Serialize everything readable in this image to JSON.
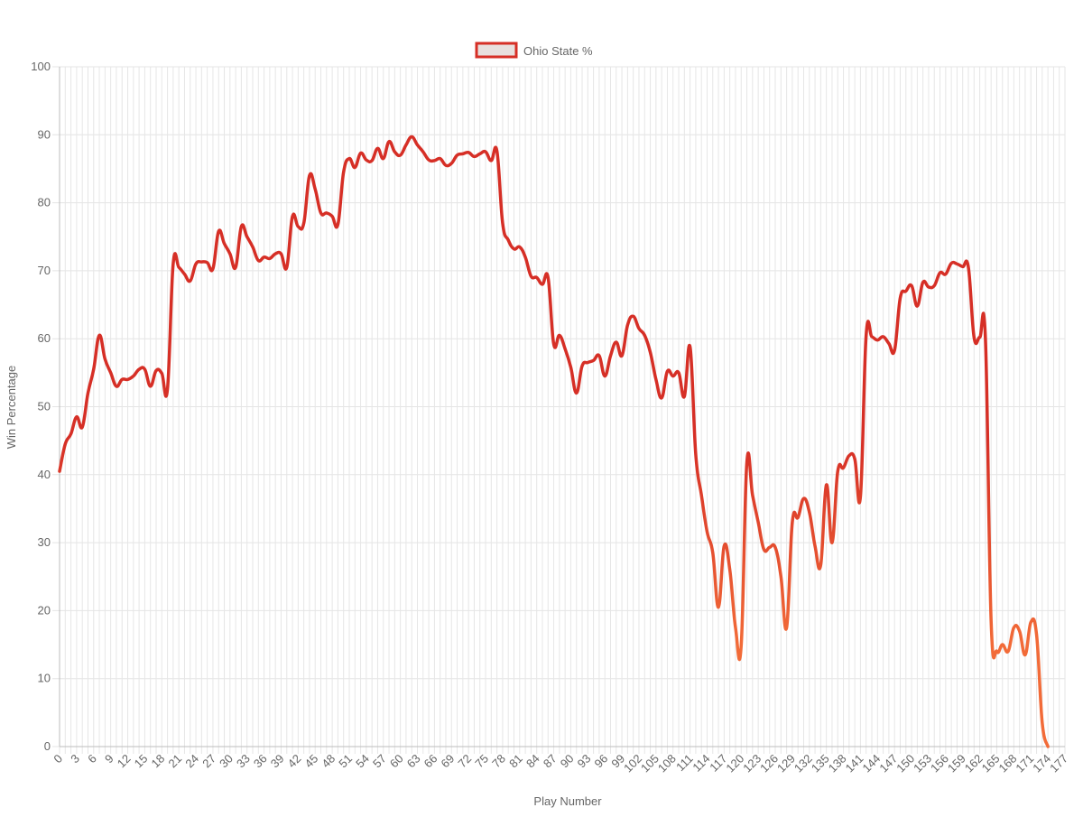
{
  "chart_data": {
    "type": "line",
    "title": "",
    "xlabel": "Play Number",
    "ylabel": "Win Percentage",
    "ylim": [
      0,
      100
    ],
    "xlim": [
      0,
      177
    ],
    "y_ticks": [
      0,
      10,
      20,
      30,
      40,
      50,
      60,
      70,
      80,
      90,
      100
    ],
    "x_tick_step": 3,
    "grid": true,
    "legend_position": "top",
    "line_color_start": "#d62f26",
    "line_color_end": "#f26b38",
    "legend_fill": "#e8e0de",
    "series": [
      {
        "name": "Ohio State %",
        "values": [
          40.5,
          44.5,
          46,
          48.5,
          47,
          52,
          55.5,
          60.5,
          57,
          55,
          53,
          54,
          54,
          54.5,
          55.5,
          55.5,
          53,
          55.3,
          54.9,
          52.6,
          71,
          70.5,
          69.5,
          68.5,
          71,
          71.3,
          71.2,
          70.3,
          75.8,
          74,
          72.5,
          70.5,
          76.5,
          75,
          73.5,
          71.5,
          72,
          71.8,
          72.5,
          72.5,
          70.5,
          78,
          76.5,
          77,
          84,
          82,
          78.5,
          78.5,
          78,
          76.8,
          84.5,
          86.5,
          85.2,
          87.3,
          86.3,
          86.2,
          88,
          86.5,
          89,
          87.5,
          87,
          88.5,
          89.7,
          88.5,
          87.5,
          86.3,
          86.2,
          86.5,
          85.5,
          85.8,
          87,
          87.2,
          87.4,
          86.8,
          87.2,
          87.5,
          86.2,
          87.6,
          77,
          74.5,
          73.2,
          73.5,
          72,
          69.2,
          69,
          68,
          69,
          59.2,
          60.5,
          58.5,
          55.8,
          52,
          56,
          56.5,
          56.8,
          57.5,
          54.5,
          57.5,
          59.5,
          57.5,
          62,
          63.3,
          61.5,
          60.5,
          58,
          54,
          51.3,
          55.2,
          54.5,
          55,
          51.5,
          58.8,
          43,
          37,
          31.6,
          28.5,
          20.5,
          29.5,
          26,
          17.5,
          14.8,
          41.8,
          37,
          33,
          29,
          29.3,
          29.3,
          25,
          17.5,
          33,
          33.7,
          36.5,
          34.5,
          29.5,
          26.7,
          38.5,
          30,
          40.5,
          41,
          42.8,
          42.3,
          36.8,
          60.5,
          60.3,
          59.8,
          60.3,
          59.3,
          58.3,
          66,
          67,
          67.8,
          64.8,
          68.3,
          67.6,
          67.8,
          69.7,
          69.5,
          71.1,
          71,
          70.6,
          70.5,
          60.2,
          60.2,
          60,
          18.5,
          14,
          15,
          14,
          17.5,
          17,
          13.5,
          18.3,
          16.5,
          3.5,
          0
        ]
      }
    ]
  }
}
